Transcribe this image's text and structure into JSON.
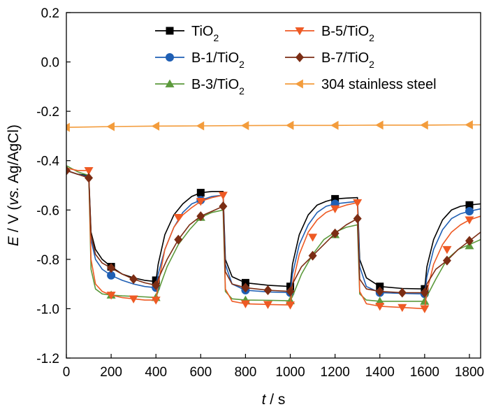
{
  "chart_data": {
    "type": "line",
    "xlabel": {
      "italic": "t",
      "rest": " / s"
    },
    "ylabel": {
      "italic": "E",
      "mid": " / V (",
      "italic2": "vs.",
      "rest": " Ag/AgCl)"
    },
    "xlim": [
      0,
      1850
    ],
    "ylim": [
      -1.2,
      0.2
    ],
    "xticks": [
      0,
      200,
      400,
      600,
      800,
      1000,
      1200,
      1400,
      1600,
      1800
    ],
    "xtick_labels": [
      "0",
      "200",
      "400",
      "600",
      "800",
      "1000",
      "1200",
      "1400",
      "1600",
      "1800"
    ],
    "yticks": [
      -1.2,
      -1.0,
      -0.8,
      -0.6,
      -0.4,
      -0.2,
      0.0,
      0.2
    ],
    "ytick_labels": [
      "-1.2",
      "-1.0",
      "-0.8",
      "-0.6",
      "-0.4",
      "-0.2",
      "0.0",
      "0.2"
    ],
    "grid": false,
    "legend_position": "top-right",
    "series": [
      {
        "name": "TiO2",
        "label_main": "TiO",
        "label_sub": "2",
        "color": "#000000",
        "marker": "square",
        "x": [
          0,
          50,
          100,
          110,
          130,
          160,
          200,
          250,
          300,
          350,
          400,
          410,
          440,
          480,
          520,
          560,
          600,
          650,
          700,
          710,
          740,
          800,
          900,
          1000,
          1010,
          1040,
          1080,
          1120,
          1160,
          1200,
          1250,
          1300,
          1310,
          1340,
          1400,
          1500,
          1600,
          1610,
          1640,
          1680,
          1720,
          1760,
          1800,
          1850
        ],
        "y": [
          -0.44,
          -0.455,
          -0.46,
          -0.69,
          -0.76,
          -0.8,
          -0.83,
          -0.86,
          -0.875,
          -0.885,
          -0.89,
          -0.82,
          -0.7,
          -0.62,
          -0.575,
          -0.545,
          -0.53,
          -0.525,
          -0.525,
          -0.8,
          -0.87,
          -0.895,
          -0.905,
          -0.91,
          -0.82,
          -0.7,
          -0.62,
          -0.58,
          -0.565,
          -0.555,
          -0.552,
          -0.55,
          -0.8,
          -0.875,
          -0.91,
          -0.918,
          -0.92,
          -0.83,
          -0.72,
          -0.64,
          -0.6,
          -0.585,
          -0.58,
          -0.575
        ],
        "markers": [
          [
            200,
            -0.83
          ],
          [
            400,
            -0.885
          ],
          [
            600,
            -0.53
          ],
          [
            800,
            -0.895
          ],
          [
            1000,
            -0.91
          ],
          [
            1200,
            -0.555
          ],
          [
            1400,
            -0.91
          ],
          [
            1600,
            -0.92
          ],
          [
            1800,
            -0.58
          ]
        ]
      },
      {
        "name": "B-1/TiO2",
        "label_main": "B-1/TiO",
        "label_sub": "2",
        "color": "#1f5fb4",
        "marker": "circle",
        "x": [
          0,
          50,
          100,
          110,
          130,
          160,
          200,
          250,
          300,
          350,
          400,
          410,
          440,
          480,
          520,
          560,
          600,
          650,
          700,
          710,
          740,
          800,
          900,
          1000,
          1010,
          1040,
          1080,
          1120,
          1160,
          1200,
          1250,
          1300,
          1310,
          1340,
          1400,
          1500,
          1600,
          1610,
          1640,
          1680,
          1720,
          1760,
          1800,
          1850
        ],
        "y": [
          -0.44,
          -0.455,
          -0.465,
          -0.72,
          -0.8,
          -0.84,
          -0.865,
          -0.885,
          -0.9,
          -0.91,
          -0.915,
          -0.86,
          -0.76,
          -0.67,
          -0.61,
          -0.575,
          -0.56,
          -0.545,
          -0.54,
          -0.82,
          -0.9,
          -0.925,
          -0.932,
          -0.935,
          -0.86,
          -0.74,
          -0.66,
          -0.61,
          -0.585,
          -0.575,
          -0.57,
          -0.565,
          -0.83,
          -0.91,
          -0.935,
          -0.938,
          -0.94,
          -0.87,
          -0.76,
          -0.68,
          -0.635,
          -0.615,
          -0.605,
          -0.595
        ],
        "markers": [
          [
            200,
            -0.865
          ],
          [
            400,
            -0.915
          ],
          [
            600,
            -0.56
          ],
          [
            800,
            -0.925
          ],
          [
            1000,
            -0.935
          ],
          [
            1200,
            -0.575
          ],
          [
            1400,
            -0.935
          ],
          [
            1600,
            -0.94
          ],
          [
            1800,
            -0.605
          ]
        ]
      },
      {
        "name": "B-3/TiO2",
        "label_main": "B-3/TiO",
        "label_sub": "2",
        "color": "#5c9a3c",
        "marker": "triangle-up",
        "x": [
          0,
          50,
          100,
          110,
          130,
          160,
          200,
          250,
          300,
          350,
          400,
          410,
          450,
          500,
          550,
          600,
          650,
          700,
          710,
          740,
          800,
          900,
          1000,
          1010,
          1050,
          1100,
          1150,
          1200,
          1250,
          1300,
          1310,
          1340,
          1400,
          1500,
          1600,
          1610,
          1650,
          1700,
          1750,
          1800,
          1850
        ],
        "y": [
          -0.42,
          -0.445,
          -0.46,
          -0.84,
          -0.92,
          -0.94,
          -0.945,
          -0.948,
          -0.95,
          -0.952,
          -0.955,
          -0.93,
          -0.83,
          -0.74,
          -0.68,
          -0.63,
          -0.61,
          -0.6,
          -0.93,
          -0.96,
          -0.965,
          -0.966,
          -0.968,
          -0.95,
          -0.86,
          -0.78,
          -0.72,
          -0.69,
          -0.67,
          -0.66,
          -0.94,
          -0.965,
          -0.97,
          -0.97,
          -0.97,
          -0.95,
          -0.88,
          -0.8,
          -0.76,
          -0.74,
          -0.72
        ],
        "markers": [
          [
            200,
            -0.945
          ],
          [
            400,
            -0.955
          ],
          [
            600,
            -0.63
          ],
          [
            800,
            -0.965
          ],
          [
            1000,
            -0.968
          ],
          [
            1200,
            -0.7
          ],
          [
            1400,
            -0.97
          ],
          [
            1600,
            -0.97
          ],
          [
            1800,
            -0.745
          ]
        ]
      },
      {
        "name": "B-5/TiO2",
        "label_main": "B-5/TiO",
        "label_sub": "2",
        "color": "#ee5a24",
        "marker": "triangle-down",
        "x": [
          0,
          50,
          100,
          110,
          130,
          160,
          200,
          250,
          300,
          350,
          400,
          410,
          440,
          480,
          520,
          560,
          600,
          650,
          700,
          710,
          740,
          800,
          900,
          1000,
          1010,
          1040,
          1080,
          1120,
          1160,
          1200,
          1250,
          1300,
          1310,
          1340,
          1400,
          1500,
          1600,
          1610,
          1640,
          1680,
          1720,
          1760,
          1800,
          1850
        ],
        "y": [
          -0.43,
          -0.44,
          -0.44,
          -0.8,
          -0.9,
          -0.93,
          -0.945,
          -0.955,
          -0.96,
          -0.965,
          -0.965,
          -0.9,
          -0.76,
          -0.67,
          -0.62,
          -0.59,
          -0.565,
          -0.55,
          -0.54,
          -0.92,
          -0.97,
          -0.98,
          -0.983,
          -0.985,
          -0.9,
          -0.78,
          -0.69,
          -0.64,
          -0.61,
          -0.595,
          -0.58,
          -0.57,
          -0.93,
          -0.98,
          -0.99,
          -0.995,
          -1.0,
          -0.93,
          -0.82,
          -0.74,
          -0.69,
          -0.66,
          -0.64,
          -0.625
        ],
        "markers": [
          [
            100,
            -0.44
          ],
          [
            200,
            -0.945
          ],
          [
            300,
            -0.96
          ],
          [
            400,
            -0.965
          ],
          [
            500,
            -0.63
          ],
          [
            600,
            -0.565
          ],
          [
            700,
            -0.54
          ],
          [
            800,
            -0.98
          ],
          [
            900,
            -0.983
          ],
          [
            1000,
            -0.985
          ],
          [
            1100,
            -0.71
          ],
          [
            1200,
            -0.595
          ],
          [
            1300,
            -0.57
          ],
          [
            1400,
            -0.99
          ],
          [
            1500,
            -0.995
          ],
          [
            1600,
            -1.0
          ],
          [
            1700,
            -0.76
          ],
          [
            1800,
            -0.64
          ]
        ]
      },
      {
        "name": "B-7/TiO2",
        "label_main": "B-7/TiO",
        "label_sub": "2",
        "color": "#7b2d14",
        "marker": "diamond",
        "x": [
          0,
          50,
          100,
          110,
          130,
          160,
          200,
          250,
          300,
          350,
          400,
          410,
          450,
          500,
          550,
          600,
          650,
          700,
          710,
          740,
          800,
          900,
          1000,
          1010,
          1050,
          1100,
          1150,
          1200,
          1250,
          1300,
          1310,
          1340,
          1400,
          1500,
          1600,
          1610,
          1650,
          1700,
          1750,
          1800,
          1850
        ],
        "y": [
          -0.44,
          -0.455,
          -0.47,
          -0.7,
          -0.78,
          -0.815,
          -0.835,
          -0.86,
          -0.88,
          -0.895,
          -0.905,
          -0.88,
          -0.8,
          -0.72,
          -0.66,
          -0.625,
          -0.605,
          -0.585,
          -0.85,
          -0.9,
          -0.915,
          -0.925,
          -0.93,
          -0.9,
          -0.83,
          -0.785,
          -0.74,
          -0.695,
          -0.66,
          -0.635,
          -0.88,
          -0.92,
          -0.93,
          -0.935,
          -0.935,
          -0.9,
          -0.84,
          -0.805,
          -0.76,
          -0.725,
          -0.69
        ],
        "markers": [
          [
            0,
            -0.44
          ],
          [
            100,
            -0.47
          ],
          [
            200,
            -0.835
          ],
          [
            300,
            -0.88
          ],
          [
            400,
            -0.905
          ],
          [
            500,
            -0.72
          ],
          [
            600,
            -0.625
          ],
          [
            700,
            -0.585
          ],
          [
            800,
            -0.915
          ],
          [
            900,
            -0.925
          ],
          [
            1000,
            -0.93
          ],
          [
            1100,
            -0.785
          ],
          [
            1200,
            -0.695
          ],
          [
            1300,
            -0.635
          ],
          [
            1400,
            -0.93
          ],
          [
            1500,
            -0.935
          ],
          [
            1600,
            -0.935
          ],
          [
            1700,
            -0.805
          ],
          [
            1800,
            -0.725
          ]
        ]
      },
      {
        "name": "304 stainless steel",
        "label_main": "304 stainless steel",
        "label_sub": "",
        "color": "#f39c3c",
        "marker": "triangle-left",
        "x": [
          0,
          200,
          400,
          600,
          800,
          1000,
          1200,
          1400,
          1600,
          1800,
          1850
        ],
        "y": [
          -0.265,
          -0.262,
          -0.26,
          -0.259,
          -0.258,
          -0.257,
          -0.257,
          -0.256,
          -0.256,
          -0.255,
          -0.255
        ],
        "markers": [
          [
            0,
            -0.265
          ],
          [
            200,
            -0.262
          ],
          [
            400,
            -0.26
          ],
          [
            600,
            -0.259
          ],
          [
            800,
            -0.258
          ],
          [
            1000,
            -0.257
          ],
          [
            1200,
            -0.257
          ],
          [
            1400,
            -0.256
          ],
          [
            1600,
            -0.256
          ],
          [
            1800,
            -0.255
          ]
        ]
      }
    ],
    "legend_order": [
      0,
      3,
      1,
      4,
      2,
      5
    ]
  }
}
